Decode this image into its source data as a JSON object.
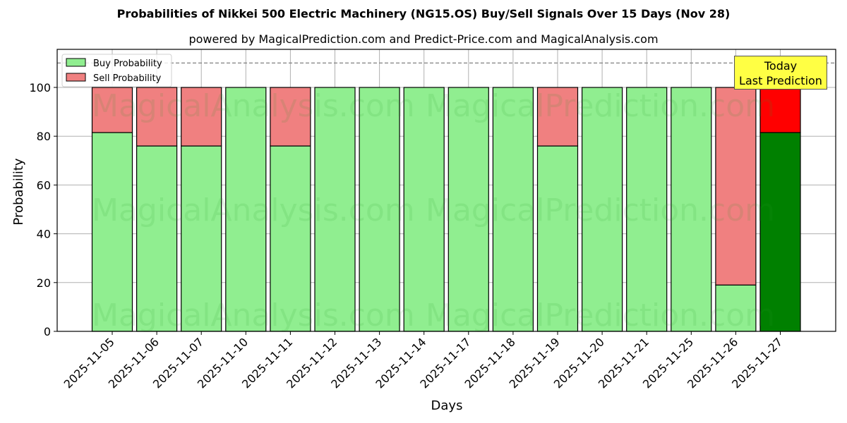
{
  "title": "Probabilities of Nikkei 500 Electric Machinery (NG15.OS) Buy/Sell Signals Over 15 Days (Nov 28)",
  "subtitle": "powered by MagicalPrediction.com and Predict-Price.com and MagicalAnalysis.com",
  "annotation": {
    "line1": "Today",
    "line2": "Last Prediction"
  },
  "watermarks": [
    "MagicalAnalysis.com",
    "MagicalPrediction.com"
  ],
  "colors": {
    "buy": "#90ee90",
    "sell": "#f08080",
    "buy_today": "#008000",
    "sell_today": "#ff0000",
    "annotation_bg": "#ffff44"
  },
  "chart_data": {
    "type": "bar",
    "stacked": true,
    "title": "Probabilities of Nikkei 500 Electric Machinery (NG15.OS) Buy/Sell Signals Over 15 Days (Nov 28)",
    "subtitle": "powered by MagicalPrediction.com and Predict-Price.com and MagicalAnalysis.com",
    "xlabel": "Days",
    "ylabel": "Probability",
    "ylim": [
      0,
      115
    ],
    "yticks": [
      0,
      20,
      40,
      60,
      80,
      100
    ],
    "grid": true,
    "legend_position": "upper left",
    "reference_line": {
      "y": 110,
      "style": "dashed",
      "color": "#808080"
    },
    "categories": [
      "2025-11-05",
      "2025-11-06",
      "2025-11-07",
      "2025-11-10",
      "2025-11-11",
      "2025-11-12",
      "2025-11-13",
      "2025-11-14",
      "2025-11-17",
      "2025-11-18",
      "2025-11-19",
      "2025-11-20",
      "2025-11-21",
      "2025-11-25",
      "2025-11-26",
      "2025-11-27"
    ],
    "series": [
      {
        "name": "Buy Probability",
        "values": [
          81.5,
          76,
          76,
          100,
          76,
          100,
          100,
          100,
          100,
          100,
          76,
          100,
          100,
          100,
          19,
          81.5
        ]
      },
      {
        "name": "Sell Probability",
        "values": [
          18.5,
          24,
          24,
          0,
          24,
          0,
          0,
          0,
          0,
          0,
          24,
          0,
          0,
          0,
          81,
          18.5
        ]
      }
    ],
    "annotations": [
      {
        "text": "Today\nLast Prediction",
        "x": "2025-11-27"
      }
    ]
  }
}
